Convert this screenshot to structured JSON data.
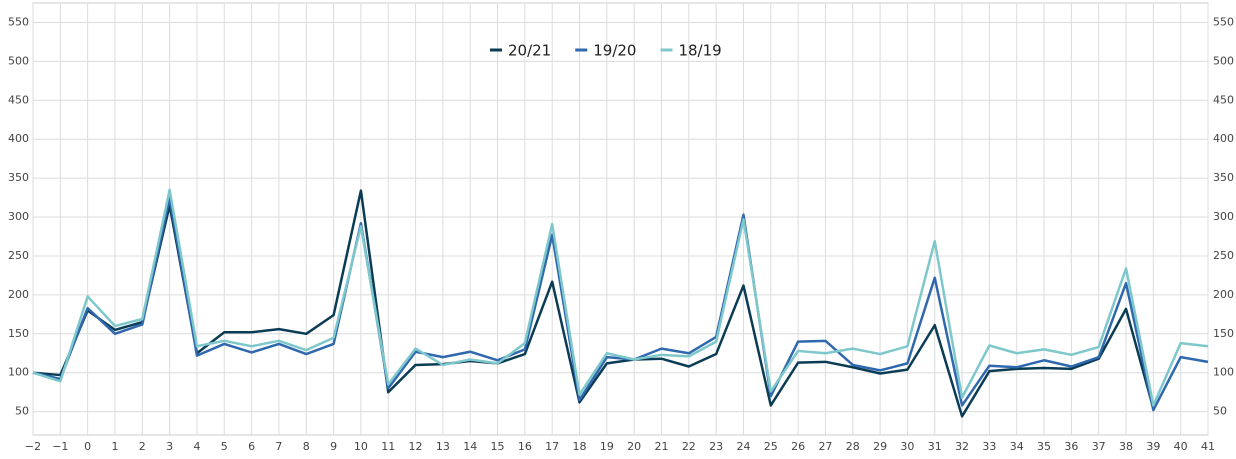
{
  "chart_data": {
    "type": "line",
    "x": [
      -2,
      -1,
      0,
      1,
      2,
      3,
      4,
      5,
      6,
      7,
      8,
      9,
      10,
      11,
      12,
      13,
      14,
      15,
      16,
      17,
      18,
      19,
      20,
      21,
      22,
      23,
      24,
      25,
      26,
      27,
      28,
      29,
      30,
      31,
      32,
      33,
      34,
      35,
      36,
      37,
      38,
      39,
      40,
      41
    ],
    "series": [
      {
        "name": "20/21",
        "color": "#0b3c55",
        "values": [
          100,
          97,
          180,
          155,
          165,
          315,
          125,
          152,
          152,
          156,
          150,
          174,
          334,
          75,
          110,
          111,
          115,
          112,
          124,
          217,
          62,
          112,
          117,
          118,
          108,
          124,
          212,
          58,
          113,
          114,
          107,
          99,
          104,
          161,
          44,
          102,
          105,
          106,
          105,
          118,
          182,
          54,
          null,
          null
        ]
      },
      {
        "name": "19/20",
        "color": "#2f68ad",
        "values": [
          100,
          92,
          183,
          150,
          162,
          325,
          122,
          137,
          126,
          137,
          124,
          137,
          292,
          80,
          127,
          120,
          127,
          116,
          130,
          277,
          65,
          120,
          117,
          131,
          125,
          146,
          303,
          70,
          140,
          141,
          110,
          103,
          112,
          222,
          58,
          109,
          107,
          116,
          108,
          120,
          215,
          52,
          120,
          114
        ]
      },
      {
        "name": "18/19",
        "color": "#7ec8cc",
        "values": [
          100,
          89,
          198,
          160,
          169,
          335,
          134,
          141,
          134,
          141,
          129,
          145,
          288,
          85,
          131,
          110,
          117,
          112,
          138,
          291,
          72,
          125,
          117,
          123,
          121,
          140,
          297,
          76,
          128,
          125,
          131,
          124,
          134,
          269,
          68,
          135,
          125,
          130,
          123,
          133,
          234,
          58,
          138,
          134
        ]
      }
    ],
    "xlim": [
      -2,
      41
    ],
    "xticks": [
      {
        "value": -2,
        "label": "−2"
      },
      {
        "value": -1,
        "label": "−1"
      },
      0,
      1,
      2,
      3,
      4,
      5,
      6,
      7,
      8,
      9,
      10,
      11,
      12,
      13,
      14,
      15,
      16,
      17,
      18,
      19,
      20,
      21,
      22,
      23,
      24,
      25,
      26,
      27,
      28,
      29,
      30,
      31,
      32,
      33,
      34,
      35,
      36,
      37,
      38,
      39,
      40,
      41
    ],
    "ylim": [
      20,
      575
    ],
    "yticks": [
      50,
      100,
      150,
      200,
      250,
      300,
      350,
      400,
      450,
      500,
      550
    ],
    "grid": true,
    "legend": "top"
  }
}
